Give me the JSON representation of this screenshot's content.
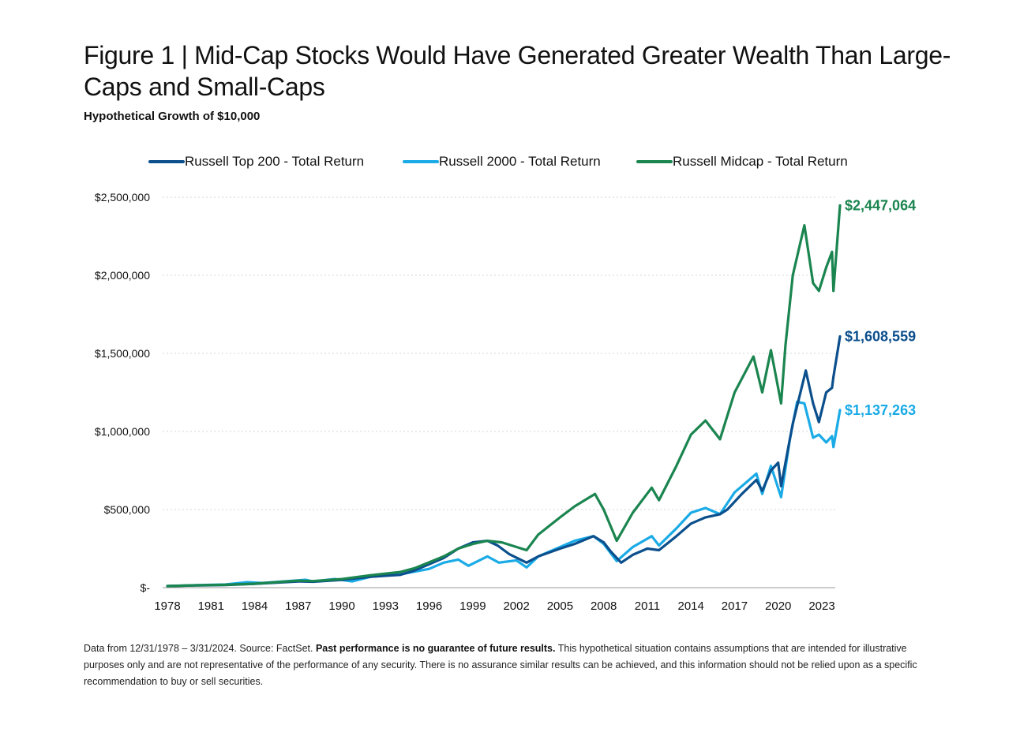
{
  "header": {
    "title": "Figure 1 | Mid-Cap Stocks Would Have Generated Greater Wealth Than Large-Caps and Small-Caps",
    "subtitle": "Hypothetical Growth of $10,000"
  },
  "footnote": {
    "lead": "Data from 12/31/1978 – 3/31/2024. Source: FactSet. ",
    "bold": "Past performance is no guarantee of future results.",
    "rest": " This hypothetical situation contains assumptions that are intended for illustrative purposes only and are not representative of the performance of any security. There is no assurance similar results can be achieved, and this information should not be relied upon as a specific recommendation to buy or sell securities."
  },
  "chart_data": {
    "type": "line",
    "legend_position": "top",
    "grid": true,
    "ylim": [
      0,
      2500000
    ],
    "xlim": [
      1978,
      2024.25
    ],
    "y_ticks": [
      {
        "value": 0,
        "label": "$-"
      },
      {
        "value": 500000,
        "label": "$500,000"
      },
      {
        "value": 1000000,
        "label": "$1,000,000"
      },
      {
        "value": 1500000,
        "label": "$1,500,000"
      },
      {
        "value": 2000000,
        "label": "$2,000,000"
      },
      {
        "value": 2500000,
        "label": "$2,500,000"
      }
    ],
    "x_ticks": [
      {
        "value": 1978,
        "label": "1978"
      },
      {
        "value": 1981,
        "label": "1981"
      },
      {
        "value": 1984,
        "label": "1984"
      },
      {
        "value": 1987,
        "label": "1987"
      },
      {
        "value": 1990,
        "label": "1990"
      },
      {
        "value": 1993,
        "label": "1993"
      },
      {
        "value": 1996,
        "label": "1996"
      },
      {
        "value": 1999,
        "label": "1999"
      },
      {
        "value": 2002,
        "label": "2002"
      },
      {
        "value": 2005,
        "label": "2005"
      },
      {
        "value": 2008,
        "label": "2008"
      },
      {
        "value": 2011,
        "label": "2011"
      },
      {
        "value": 2014,
        "label": "2014"
      },
      {
        "value": 2017,
        "label": "2017"
      },
      {
        "value": 2020,
        "label": "2020"
      },
      {
        "value": 2023,
        "label": "2023"
      }
    ],
    "series": [
      {
        "name": "Russell Top 200 - Total Return",
        "color": "#0b4f8c",
        "end_label": "$1,608,559",
        "points": [
          [
            1978.0,
            10000
          ],
          [
            1980.0,
            14000
          ],
          [
            1982.0,
            17000
          ],
          [
            1984.0,
            24000
          ],
          [
            1987.0,
            40000
          ],
          [
            1988.0,
            38000
          ],
          [
            1990.0,
            50000
          ],
          [
            1992.0,
            70000
          ],
          [
            1994.0,
            82000
          ],
          [
            1995.0,
            110000
          ],
          [
            1997.0,
            190000
          ],
          [
            1998.0,
            250000
          ],
          [
            1999.0,
            290000
          ],
          [
            2000.0,
            300000
          ],
          [
            2000.7,
            270000
          ],
          [
            2001.5,
            215000
          ],
          [
            2002.7,
            160000
          ],
          [
            2003.5,
            200000
          ],
          [
            2005.0,
            250000
          ],
          [
            2006.0,
            280000
          ],
          [
            2007.3,
            330000
          ],
          [
            2008.0,
            290000
          ],
          [
            2008.5,
            230000
          ],
          [
            2009.2,
            160000
          ],
          [
            2010.0,
            210000
          ],
          [
            2011.0,
            250000
          ],
          [
            2011.8,
            240000
          ],
          [
            2013.0,
            330000
          ],
          [
            2014.0,
            410000
          ],
          [
            2015.0,
            450000
          ],
          [
            2016.0,
            470000
          ],
          [
            2016.5,
            500000
          ],
          [
            2017.5,
            600000
          ],
          [
            2018.5,
            690000
          ],
          [
            2018.9,
            620000
          ],
          [
            2019.5,
            750000
          ],
          [
            2020.0,
            800000
          ],
          [
            2020.2,
            650000
          ],
          [
            2020.7,
            900000
          ],
          [
            2021.0,
            1050000
          ],
          [
            2021.9,
            1390000
          ],
          [
            2022.4,
            1180000
          ],
          [
            2022.8,
            1060000
          ],
          [
            2023.3,
            1250000
          ],
          [
            2023.7,
            1280000
          ],
          [
            2023.8,
            1350000
          ],
          [
            2024.25,
            1608559
          ]
        ]
      },
      {
        "name": "Russell 2000 - Total Return",
        "color": "#1aabe6",
        "end_label": "$1,137,263",
        "points": [
          [
            1978.0,
            10000
          ],
          [
            1980.0,
            16000
          ],
          [
            1982.0,
            20000
          ],
          [
            1983.5,
            35000
          ],
          [
            1984.5,
            30000
          ],
          [
            1987.5,
            50000
          ],
          [
            1988.0,
            40000
          ],
          [
            1989.5,
            55000
          ],
          [
            1990.7,
            40000
          ],
          [
            1992.0,
            70000
          ],
          [
            1994.0,
            85000
          ],
          [
            1996.0,
            120000
          ],
          [
            1997.0,
            160000
          ],
          [
            1998.0,
            180000
          ],
          [
            1998.7,
            140000
          ],
          [
            2000.0,
            200000
          ],
          [
            2000.8,
            160000
          ],
          [
            2002.0,
            175000
          ],
          [
            2002.7,
            130000
          ],
          [
            2003.5,
            200000
          ],
          [
            2004.5,
            240000
          ],
          [
            2006.0,
            300000
          ],
          [
            2007.3,
            330000
          ],
          [
            2008.0,
            280000
          ],
          [
            2008.9,
            170000
          ],
          [
            2010.0,
            260000
          ],
          [
            2011.3,
            330000
          ],
          [
            2011.8,
            270000
          ],
          [
            2013.0,
            380000
          ],
          [
            2014.0,
            480000
          ],
          [
            2015.0,
            510000
          ],
          [
            2016.0,
            470000
          ],
          [
            2017.0,
            610000
          ],
          [
            2018.5,
            730000
          ],
          [
            2018.9,
            600000
          ],
          [
            2019.5,
            780000
          ],
          [
            2020.2,
            580000
          ],
          [
            2020.8,
            950000
          ],
          [
            2021.3,
            1190000
          ],
          [
            2021.8,
            1180000
          ],
          [
            2022.4,
            960000
          ],
          [
            2022.8,
            980000
          ],
          [
            2023.3,
            930000
          ],
          [
            2023.7,
            970000
          ],
          [
            2023.8,
            900000
          ],
          [
            2024.25,
            1137263
          ]
        ]
      },
      {
        "name": "Russell Midcap - Total Return",
        "color": "#1b8550",
        "end_label": "$2,447,064",
        "points": [
          [
            1978.0,
            10000
          ],
          [
            1980.0,
            15000
          ],
          [
            1982.0,
            18000
          ],
          [
            1984.0,
            25000
          ],
          [
            1987.0,
            45000
          ],
          [
            1988.0,
            42000
          ],
          [
            1990.0,
            55000
          ],
          [
            1992.0,
            80000
          ],
          [
            1994.0,
            100000
          ],
          [
            1995.0,
            125000
          ],
          [
            1997.0,
            200000
          ],
          [
            1998.0,
            250000
          ],
          [
            1999.0,
            280000
          ],
          [
            2000.0,
            300000
          ],
          [
            2001.0,
            290000
          ],
          [
            2002.7,
            240000
          ],
          [
            2003.5,
            340000
          ],
          [
            2005.0,
            450000
          ],
          [
            2006.0,
            520000
          ],
          [
            2007.4,
            600000
          ],
          [
            2008.0,
            500000
          ],
          [
            2008.9,
            300000
          ],
          [
            2010.0,
            480000
          ],
          [
            2011.3,
            640000
          ],
          [
            2011.8,
            560000
          ],
          [
            2013.0,
            780000
          ],
          [
            2014.0,
            980000
          ],
          [
            2015.0,
            1070000
          ],
          [
            2016.0,
            950000
          ],
          [
            2017.0,
            1250000
          ],
          [
            2018.3,
            1480000
          ],
          [
            2018.9,
            1250000
          ],
          [
            2019.5,
            1520000
          ],
          [
            2020.2,
            1180000
          ],
          [
            2020.5,
            1550000
          ],
          [
            2021.0,
            2000000
          ],
          [
            2021.8,
            2320000
          ],
          [
            2022.4,
            1950000
          ],
          [
            2022.8,
            1900000
          ],
          [
            2023.3,
            2050000
          ],
          [
            2023.7,
            2150000
          ],
          [
            2023.8,
            1900000
          ],
          [
            2024.25,
            2447064
          ]
        ]
      }
    ]
  }
}
